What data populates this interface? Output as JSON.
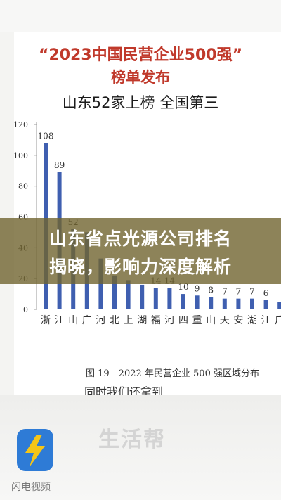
{
  "title_line1": "“2023中国民营企业500强”",
  "title_line2": "榜单发布",
  "title_line3": "山东52家上榜 全国第三",
  "caption": "图 19　2022 年民营企业 500 强区域分布",
  "subcaption": "同时我们还拿到",
  "headline_line1": "山东省点光源公司排名",
  "headline_line2": "揭晓，影响力深度解析",
  "watermark": "生活帮",
  "app_name": "闪电视频",
  "colors": {
    "bar": "#3f5fb0",
    "title_red": "#c0392b",
    "banner": "#706430"
  },
  "chart_data": {
    "type": "bar",
    "categories": [
      "浙江",
      "江苏",
      "山东",
      "广东",
      "河北",
      "北京",
      "上海",
      "湖北",
      "福建",
      "河南",
      "四川",
      "重庆",
      "山西",
      "天津",
      "安徽",
      "湖南",
      "江西",
      "广西"
    ],
    "values": [
      108,
      89,
      52,
      50,
      33,
      22,
      19,
      16,
      14,
      14,
      10,
      9,
      8,
      7,
      7,
      7,
      6,
      5
    ],
    "value_labels": [
      "108",
      "89",
      "52",
      "",
      "",
      "",
      "",
      "",
      "14",
      "14",
      "10",
      "9",
      "8",
      "7",
      "7",
      "7",
      "6",
      ""
    ],
    "yticks": [
      0,
      20,
      40,
      60,
      80,
      100,
      120
    ],
    "ylim": [
      0,
      120
    ],
    "grid": false
  }
}
